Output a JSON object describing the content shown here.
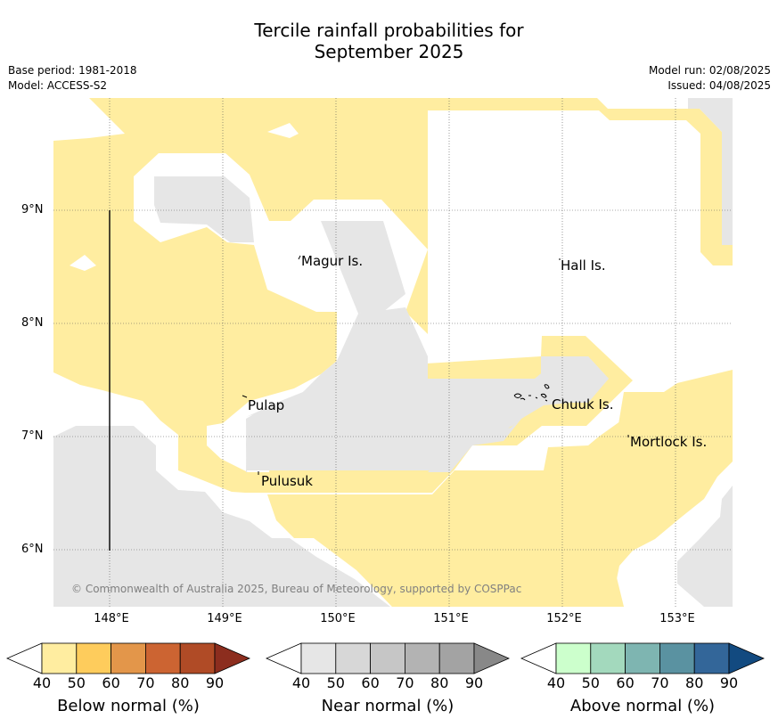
{
  "title_line1": "Tercile rainfall probabilities for",
  "title_line2": "September 2025",
  "meta": {
    "base_period": "Base period: 1981-2018",
    "model": "Model: ACCESS-S2",
    "model_run": "Model run: 02/08/2025",
    "issued": "Issued: 04/08/2025"
  },
  "axes": {
    "lat_labels": [
      "9°N",
      "8°N",
      "7°N",
      "6°N"
    ],
    "lon_labels": [
      "148°E",
      "149°E",
      "150°E",
      "151°E",
      "152°E",
      "153°E"
    ]
  },
  "places": [
    {
      "name": "Magur Is."
    },
    {
      "name": "Hall Is."
    },
    {
      "name": "Pulap"
    },
    {
      "name": "Chuuk Is."
    },
    {
      "name": "Mortlock Is."
    },
    {
      "name": "Pulusuk"
    }
  ],
  "copyright": "© Commonwealth of Australia 2025, Bureau of Meteorology, supported by COSPPac",
  "colors": {
    "below_40_50": "#ffeda0",
    "near_40_50": "#e6e6e6",
    "gap_white": "#ffffff"
  },
  "colorbars": [
    {
      "title": "Below normal (%)",
      "ticks": [
        "40",
        "50",
        "60",
        "70",
        "80",
        "90"
      ],
      "colors": [
        "#ffeda0",
        "#fecc5c",
        "#e3964a",
        "#cc6432",
        "#b04b26",
        "#8c2d1e"
      ]
    },
    {
      "title": "Near normal (%)",
      "ticks": [
        "40",
        "50",
        "60",
        "70",
        "80",
        "90"
      ],
      "colors": [
        "#e6e6e6",
        "#d7d7d7",
        "#c6c6c6",
        "#b3b3b3",
        "#a3a3a3",
        "#888888"
      ]
    },
    {
      "title": "Above normal (%)",
      "ticks": [
        "40",
        "50",
        "60",
        "70",
        "80",
        "90"
      ],
      "colors": [
        "#ccffcc",
        "#a3d9bd",
        "#7eb5b1",
        "#5a92a1",
        "#336699",
        "#124a80"
      ]
    }
  ]
}
